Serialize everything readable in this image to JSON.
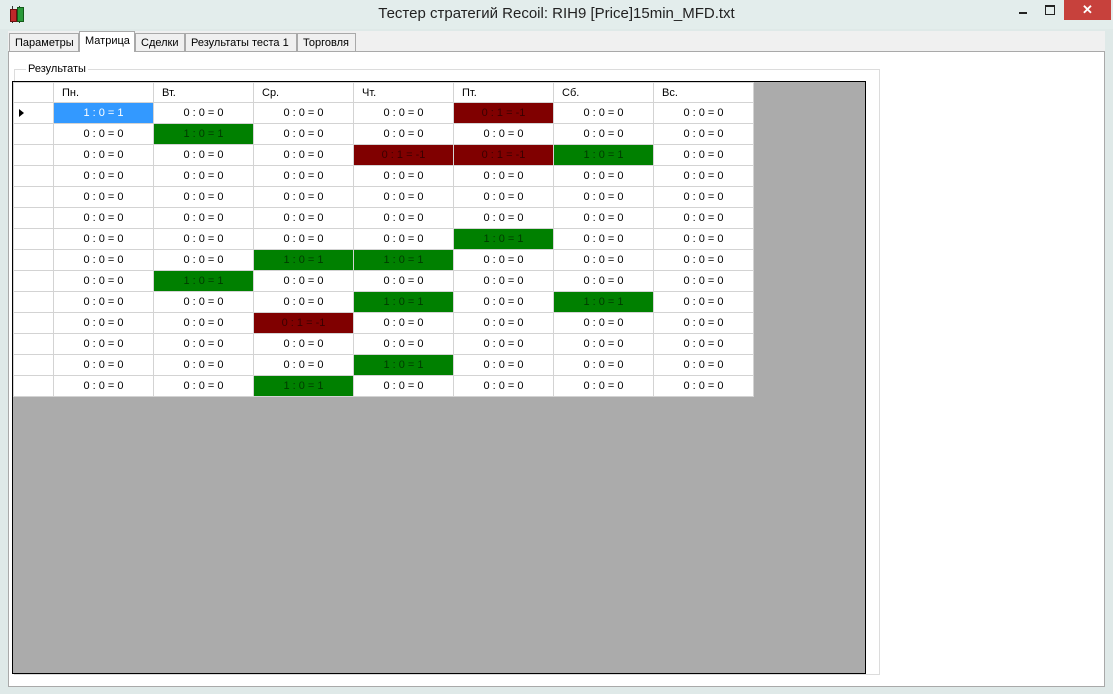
{
  "window": {
    "title": "Тестер стратегий Recoil: RIH9 [Price]15min_MFD.txt",
    "close_glyph": "✕"
  },
  "tabs": [
    {
      "label": "Параметры"
    },
    {
      "label": "Матрица"
    },
    {
      "label": "Сделки"
    },
    {
      "label": "Результаты теста 1"
    },
    {
      "label": "Торговля"
    }
  ],
  "group": {
    "label": "Результаты"
  },
  "grid": {
    "columns": [
      "Пн.",
      "Вт.",
      "Ср.",
      "Чт.",
      "Пт.",
      "Сб.",
      "Вс."
    ],
    "rows": [
      [
        "1 : 0 = 1",
        "0 : 0 = 0",
        "0 : 0 = 0",
        "0 : 0 = 0",
        "0 : 1 = -1",
        "0 : 0 = 0",
        "0 : 0 = 0"
      ],
      [
        "0 : 0 = 0",
        "1 : 0 = 1",
        "0 : 0 = 0",
        "0 : 0 = 0",
        "0 : 0 = 0",
        "0 : 0 = 0",
        "0 : 0 = 0"
      ],
      [
        "0 : 0 = 0",
        "0 : 0 = 0",
        "0 : 0 = 0",
        "0 : 1 = -1",
        "0 : 1 = -1",
        "1 : 0 = 1",
        "0 : 0 = 0"
      ],
      [
        "0 : 0 = 0",
        "0 : 0 = 0",
        "0 : 0 = 0",
        "0 : 0 = 0",
        "0 : 0 = 0",
        "0 : 0 = 0",
        "0 : 0 = 0"
      ],
      [
        "0 : 0 = 0",
        "0 : 0 = 0",
        "0 : 0 = 0",
        "0 : 0 = 0",
        "0 : 0 = 0",
        "0 : 0 = 0",
        "0 : 0 = 0"
      ],
      [
        "0 : 0 = 0",
        "0 : 0 = 0",
        "0 : 0 = 0",
        "0 : 0 = 0",
        "0 : 0 = 0",
        "0 : 0 = 0",
        "0 : 0 = 0"
      ],
      [
        "0 : 0 = 0",
        "0 : 0 = 0",
        "0 : 0 = 0",
        "0 : 0 = 0",
        "1 : 0 = 1",
        "0 : 0 = 0",
        "0 : 0 = 0"
      ],
      [
        "0 : 0 = 0",
        "0 : 0 = 0",
        "1 : 0 = 1",
        "1 : 0 = 1",
        "0 : 0 = 0",
        "0 : 0 = 0",
        "0 : 0 = 0"
      ],
      [
        "0 : 0 = 0",
        "1 : 0 = 1",
        "0 : 0 = 0",
        "0 : 0 = 0",
        "0 : 0 = 0",
        "0 : 0 = 0",
        "0 : 0 = 0"
      ],
      [
        "0 : 0 = 0",
        "0 : 0 = 0",
        "0 : 0 = 0",
        "1 : 0 = 1",
        "0 : 0 = 0",
        "1 : 0 = 1",
        "0 : 0 = 0"
      ],
      [
        "0 : 0 = 0",
        "0 : 0 = 0",
        "0 : 1 = -1",
        "0 : 0 = 0",
        "0 : 0 = 0",
        "0 : 0 = 0",
        "0 : 0 = 0"
      ],
      [
        "0 : 0 = 0",
        "0 : 0 = 0",
        "0 : 0 = 0",
        "0 : 0 = 0",
        "0 : 0 = 0",
        "0 : 0 = 0",
        "0 : 0 = 0"
      ],
      [
        "0 : 0 = 0",
        "0 : 0 = 0",
        "0 : 0 = 0",
        "1 : 0 = 1",
        "0 : 0 = 0",
        "0 : 0 = 0",
        "0 : 0 = 0"
      ],
      [
        "0 : 0 = 0",
        "0 : 0 = 0",
        "1 : 0 = 1",
        "0 : 0 = 0",
        "0 : 0 = 0",
        "0 : 0 = 0",
        "0 : 0 = 0"
      ]
    ],
    "colors": {
      "win": "#008000",
      "loss": "#800000",
      "selected": "#3399ff",
      "empty_area": "#ababab"
    }
  }
}
